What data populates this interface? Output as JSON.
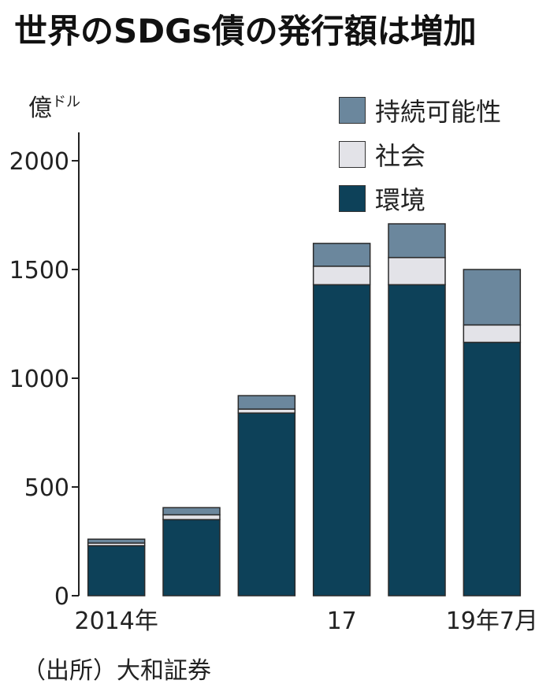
{
  "title": "世界のSDGs債の発行額は増加",
  "unit": {
    "main": "億",
    "sup": "ドル"
  },
  "source": "（出所）大和証券",
  "colors": {
    "sustainability": "#6b879d",
    "social": "#e3e3e8",
    "environment": "#0d4159",
    "axis": "#222222"
  },
  "legend": [
    {
      "label": "持続可能性",
      "color": "#6b879d"
    },
    {
      "label": "社会",
      "color": "#e3e3e8"
    },
    {
      "label": "環境",
      "color": "#0d4159"
    }
  ],
  "chart_data": {
    "type": "bar",
    "stacked": true,
    "categories": [
      "2014年",
      "",
      "",
      "17",
      "",
      "19年7月"
    ],
    "series": [
      {
        "name": "環境",
        "values": [
          230,
          350,
          840,
          1430,
          1430,
          1165
        ]
      },
      {
        "name": "社会",
        "values": [
          12,
          22,
          18,
          85,
          125,
          80
        ]
      },
      {
        "name": "持続可能性",
        "values": [
          18,
          33,
          62,
          105,
          155,
          255
        ]
      }
    ],
    "yticks": [
      0,
      500,
      1000,
      1500,
      2000
    ],
    "ylim": [
      0,
      2000
    ],
    "ylabel": "億ドル",
    "title": "世界のSDGs債の発行額は増加",
    "legend_position": "top-right"
  }
}
